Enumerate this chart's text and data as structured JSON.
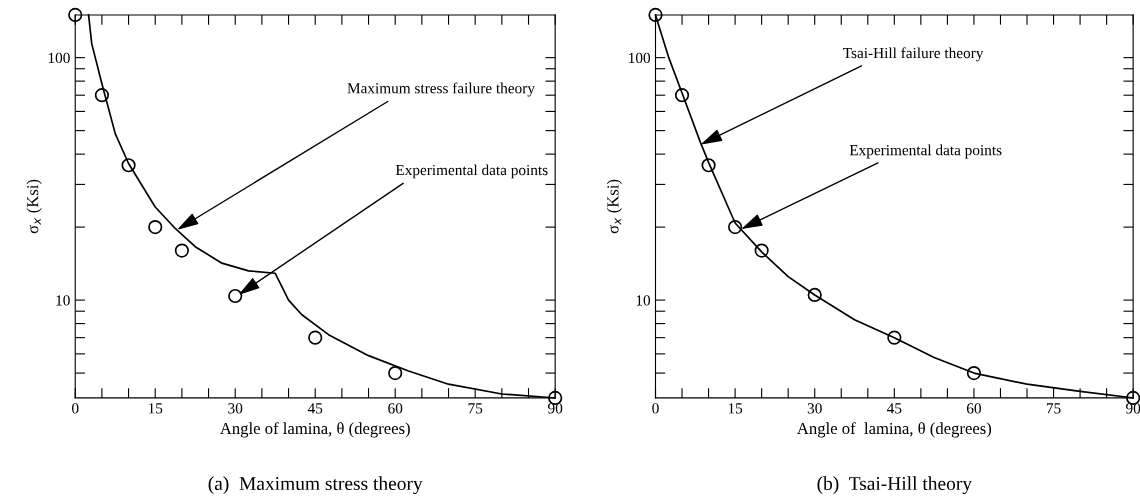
{
  "chart_data": [
    {
      "type": "scatter",
      "xlabel": "Angle of lamina, θ (degrees)",
      "ylabel": "σ$_{x}$ (Ksi)",
      "log": "y",
      "marker": "circle",
      "grid": false,
      "legend": false,
      "xlim": [
        0,
        90
      ],
      "ylim": [
        3.95,
        150
      ],
      "xticks": [
        0,
        {
          "value": 5,
          "label": null
        },
        {
          "value": 10,
          "label": null
        },
        15,
        {
          "value": 20,
          "label": null
        },
        {
          "value": 25,
          "label": null
        },
        30,
        {
          "value": 35,
          "label": null
        },
        {
          "value": 40,
          "label": null
        },
        45,
        {
          "value": 50,
          "label": null
        },
        {
          "value": 55,
          "label": null
        },
        60,
        {
          "value": 65,
          "label": null
        },
        {
          "value": 70,
          "label": null
        },
        75,
        {
          "value": 80,
          "label": null
        },
        {
          "value": 85,
          "label": null
        },
        90
      ],
      "yticks": [
        {
          "value": 5,
          "label": null
        },
        {
          "value": 6,
          "label": null
        },
        {
          "value": 7,
          "label": null
        },
        {
          "value": 8,
          "label": null
        },
        {
          "value": 9,
          "label": null
        },
        10,
        {
          "value": 20,
          "label": null
        },
        {
          "value": 30,
          "label": null
        },
        {
          "value": 40,
          "label": null
        },
        {
          "value": 50,
          "label": null
        },
        {
          "value": 60,
          "label": null
        },
        {
          "value": 70,
          "label": null
        },
        {
          "value": 80,
          "label": null
        },
        {
          "value": 90,
          "label": null
        },
        100
      ],
      "x": [
        0,
        5,
        10,
        15,
        20,
        30,
        45,
        60,
        90
      ],
      "series": [
        {
          "color": "#000000",
          "values": [
            150,
            70,
            36,
            20,
            16,
            10.4,
            7,
            5,
            3.95
          ]
        },
        {
          "type": "line",
          "color": "#000000",
          "marker": "none",
          "x": [
            2.5,
            3.1,
            5,
            7.5,
            10,
            15,
            18.8,
            22.5,
            27.5,
            32.5,
            37.5,
            38.8,
            40,
            42.5,
            47.5,
            55,
            62.5,
            70,
            80,
            90
          ],
          "values": [
            150,
            114,
            78,
            48.6,
            36.6,
            24.2,
            19.7,
            16.6,
            14.2,
            13.2,
            12.9,
            11.3,
            10,
            8.7,
            7.2,
            5.9,
            5.1,
            4.5,
            4.1,
            3.95
          ]
        }
      ],
      "annotations": [
        {
          "text": "Maximum stress failure theory",
          "x": 19.1,
          "y": 19.5
        },
        {
          "text": "Experimental data points",
          "x": 30.6,
          "y": 10.5
        },
        "(a)  Maximum stress theory"
      ]
    },
    {
      "type": "scatter",
      "xlabel": "Angle of  lamina, θ (degrees)",
      "ylabel": "σ$_{x}$ (Ksi)",
      "log": "y",
      "marker": "circle",
      "grid": false,
      "legend": false,
      "xlim": [
        0,
        90
      ],
      "ylim": [
        3.95,
        150
      ],
      "xticks": [
        0,
        {
          "value": 5,
          "label": null
        },
        {
          "value": 10,
          "label": null
        },
        15,
        {
          "value": 20,
          "label": null
        },
        {
          "value": 25,
          "label": null
        },
        30,
        {
          "value": 35,
          "label": null
        },
        {
          "value": 40,
          "label": null
        },
        45,
        {
          "value": 50,
          "label": null
        },
        {
          "value": 55,
          "label": null
        },
        60,
        {
          "value": 65,
          "label": null
        },
        {
          "value": 70,
          "label": null
        },
        75,
        {
          "value": 80,
          "label": null
        },
        {
          "value": 85,
          "label": null
        },
        90
      ],
      "yticks": [
        {
          "value": 5,
          "label": null
        },
        {
          "value": 6,
          "label": null
        },
        {
          "value": 7,
          "label": null
        },
        {
          "value": 8,
          "label": null
        },
        {
          "value": 9,
          "label": null
        },
        10,
        {
          "value": 20,
          "label": null
        },
        {
          "value": 30,
          "label": null
        },
        {
          "value": 40,
          "label": null
        },
        {
          "value": 50,
          "label": null
        },
        {
          "value": 60,
          "label": null
        },
        {
          "value": 70,
          "label": null
        },
        {
          "value": 80,
          "label": null
        },
        {
          "value": 90,
          "label": null
        },
        100
      ],
      "x": [
        0,
        5,
        10,
        15,
        20,
        30,
        45,
        60,
        90
      ],
      "series": [
        {
          "color": "#000000",
          "values": [
            150,
            70,
            36,
            20,
            16,
            10.5,
            7,
            5,
            3.95
          ]
        },
        {
          "type": "line",
          "color": "#000000",
          "marker": "none",
          "x": [
            0,
            2.5,
            5,
            8.5,
            10,
            15,
            20,
            25,
            30,
            37.5,
            45,
            52.5,
            60,
            70,
            80,
            90
          ],
          "values": [
            150,
            100,
            71.5,
            44.5,
            37,
            20.8,
            15.8,
            12.5,
            10.5,
            8.3,
            7,
            5.8,
            5,
            4.5,
            4.2,
            3.95
          ]
        }
      ],
      "annotations": [
        {
          "text": "Tsai-Hill failure theory",
          "x": 8.5,
          "y": 43.8
        },
        {
          "text": "Experimental data points",
          "x": 16.1,
          "y": 19.6
        },
        "(b)  Tsai-Hill theory"
      ]
    }
  ]
}
